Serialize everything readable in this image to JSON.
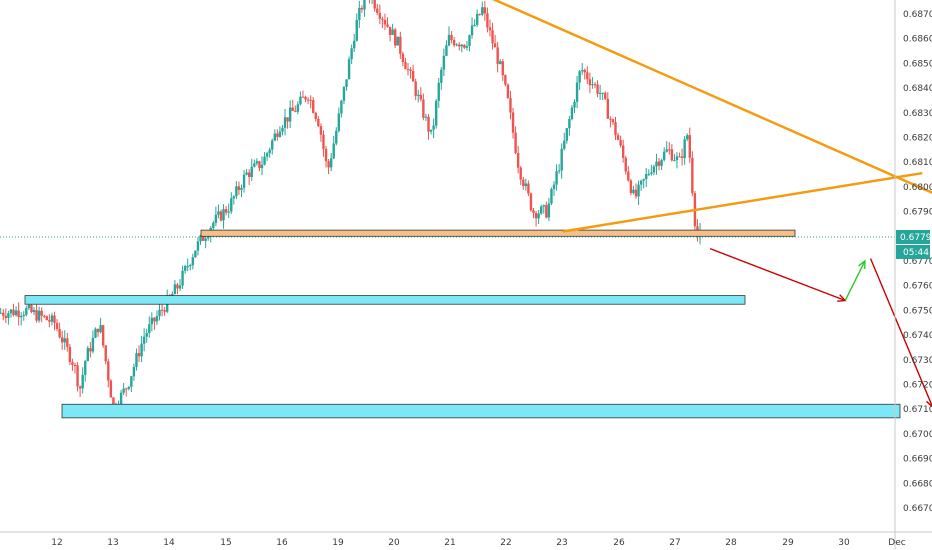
{
  "chart_data": {
    "type": "candlestick",
    "title": "",
    "xlabel": "",
    "ylabel": "",
    "ylim": [
      0.6664,
      0.6882
    ],
    "x_ticks": [
      "12",
      "13",
      "14",
      "15",
      "16",
      "19",
      "20",
      "21",
      "22",
      "23",
      "26",
      "27",
      "28",
      "29",
      "30",
      "Dec"
    ],
    "y_ticks": [
      "0.68700",
      "0.68600",
      "0.68500",
      "0.68400",
      "0.68300",
      "0.68200",
      "0.68100",
      "0.68000",
      "0.67900",
      "0.67700",
      "0.67600",
      "0.67500",
      "0.67400",
      "0.67300",
      "0.67200",
      "0.67100",
      "0.67000",
      "0.66900",
      "0.66800",
      "0.66700"
    ],
    "y_tick_values": [
      0.687,
      0.686,
      0.685,
      0.684,
      0.683,
      0.682,
      0.681,
      0.68,
      0.679,
      0.677,
      0.676,
      0.675,
      0.674,
      0.673,
      0.672,
      0.671,
      0.67,
      0.669,
      0.668,
      0.667
    ],
    "price_series_x": [
      11.0,
      11.5,
      12.0,
      12.35,
      12.45,
      12.55,
      12.8,
      13.05,
      13.3,
      13.6,
      13.9,
      14.2,
      14.5,
      14.8,
      15.1,
      15.4,
      15.7,
      16.0,
      16.3,
      16.5,
      16.7,
      16.85,
      17.0,
      17.15,
      17.35,
      17.55,
      17.8,
      18.1,
      18.4,
      18.7,
      18.85,
      19.0,
      19.3,
      19.6,
      19.9,
      20.05,
      20.25,
      20.5,
      20.75,
      21.0,
      21.35,
      21.7,
      22.0,
      22.3,
      22.6,
      22.9,
      23.1,
      23.25,
      23.4
    ],
    "price_series_y": [
      0.6749,
      0.675,
      0.6745,
      0.6728,
      0.6718,
      0.673,
      0.6745,
      0.671,
      0.672,
      0.674,
      0.675,
      0.676,
      0.6775,
      0.6785,
      0.6792,
      0.6805,
      0.681,
      0.6825,
      0.6832,
      0.6838,
      0.6826,
      0.6806,
      0.6822,
      0.684,
      0.6865,
      0.688,
      0.687,
      0.6858,
      0.684,
      0.682,
      0.6845,
      0.686,
      0.6858,
      0.6872,
      0.685,
      0.6835,
      0.6808,
      0.679,
      0.679,
      0.6812,
      0.6848,
      0.6838,
      0.682,
      0.6795,
      0.6808,
      0.6815,
      0.681,
      0.6822,
      0.678
    ],
    "levels": [
      {
        "kind": "resistance-zone",
        "from": 0.678,
        "to": 0.67825,
        "color": "#f7c08a"
      },
      {
        "kind": "support-zone",
        "from": 0.67525,
        "to": 0.6756,
        "color": "#7de8f5"
      },
      {
        "kind": "support-zone",
        "from": 0.67065,
        "to": 0.6712,
        "color": "#7de8f5"
      }
    ],
    "triangle_lines": [
      {
        "from": {
          "x": 19.6,
          "y": 0.68775
        },
        "to": {
          "x": 29.1,
          "y": 0.6782
        },
        "color": "#f39c12"
      },
      {
        "from": {
          "x": 21.0,
          "y": 0.6782
        },
        "to": {
          "x": 27.35,
          "y": 0.68055
        },
        "color": "#f39c12"
      }
    ],
    "projection_arrows": [
      {
        "from": {
          "x": 23.6,
          "y": 0.6775
        },
        "to": {
          "x": 26.0,
          "y": 0.6754
        },
        "color": "#cc0000"
      },
      {
        "from": {
          "x": 26.0,
          "y": 0.6754
        },
        "to": {
          "x": 26.35,
          "y": 0.677
        },
        "color": "#22cc22"
      },
      {
        "from": {
          "x": 26.45,
          "y": 0.6771
        },
        "to": {
          "x": 27.55,
          "y": 0.6711
        },
        "color": "#cc0000"
      }
    ],
    "current_price": {
      "label": "0.67793",
      "value": 0.67793,
      "color": "#26a69a"
    },
    "countdown": {
      "label": "05:44",
      "color": "#26a69a"
    },
    "colors": {
      "bull": "#26a69a",
      "bear": "#ef5350",
      "axis_text": "#3b3b3b"
    }
  }
}
